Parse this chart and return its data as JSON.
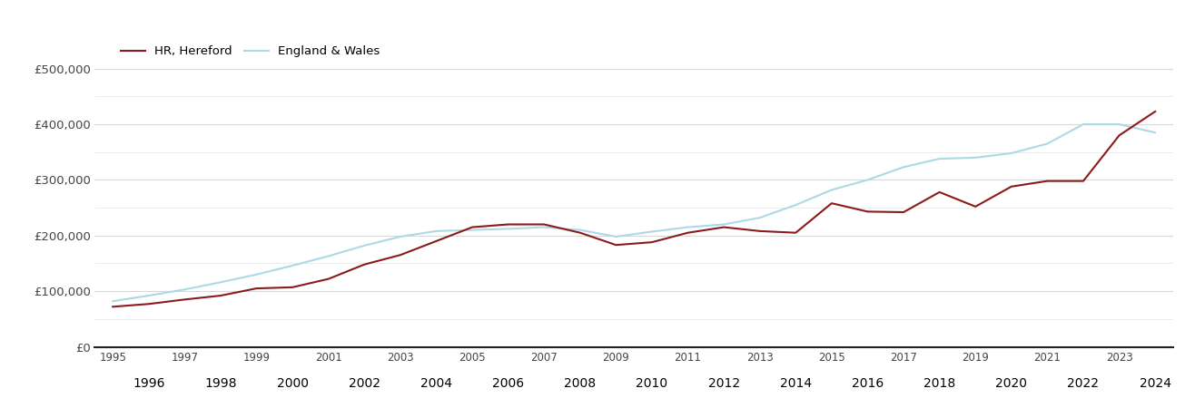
{
  "hereford_data": {
    "years": [
      1995,
      1996,
      1997,
      1998,
      1999,
      2000,
      2001,
      2002,
      2003,
      2004,
      2005,
      2006,
      2007,
      2008,
      2009,
      2010,
      2011,
      2012,
      2013,
      2014,
      2015,
      2016,
      2017,
      2018,
      2019,
      2020,
      2021,
      2022,
      2023,
      2024
    ],
    "values": [
      72000,
      77000,
      85000,
      92000,
      105000,
      107000,
      122000,
      148000,
      165000,
      190000,
      215000,
      220000,
      220000,
      205000,
      183000,
      188000,
      205000,
      215000,
      208000,
      205000,
      258000,
      243000,
      242000,
      278000,
      252000,
      288000,
      298000,
      298000,
      380000,
      423000
    ]
  },
  "england_wales_data": {
    "years": [
      1995,
      1996,
      1997,
      1998,
      1999,
      2000,
      2001,
      2002,
      2003,
      2004,
      2005,
      2006,
      2007,
      2008,
      2009,
      2010,
      2011,
      2012,
      2013,
      2014,
      2015,
      2016,
      2017,
      2018,
      2019,
      2020,
      2021,
      2022,
      2023,
      2024
    ],
    "values": [
      82000,
      92000,
      103000,
      116000,
      130000,
      146000,
      163000,
      182000,
      198000,
      208000,
      210000,
      212000,
      215000,
      210000,
      198000,
      207000,
      215000,
      220000,
      232000,
      255000,
      282000,
      300000,
      323000,
      338000,
      340000,
      348000,
      365000,
      400000,
      400000,
      385000
    ]
  },
  "hereford_color": "#8B1A1A",
  "england_wales_color": "#ADD8E6",
  "hereford_label": "HR, Hereford",
  "england_wales_label": "England & Wales",
  "ylim": [
    0,
    550000
  ],
  "yticks": [
    0,
    100000,
    200000,
    300000,
    400000,
    500000
  ],
  "ytick_labels": [
    "£0",
    "£100,000",
    "£200,000",
    "£300,000",
    "£400,000",
    "£500,000"
  ],
  "minor_yticks": [
    50000,
    150000,
    250000,
    350000,
    450000
  ],
  "xlim_start": 1994.5,
  "xlim_end": 2024.5,
  "bg_color": "#ffffff",
  "grid_color": "#d8d8d8",
  "minor_grid_color": "#e8e8e8",
  "line_width": 1.5,
  "tick_label_color": "#444444"
}
